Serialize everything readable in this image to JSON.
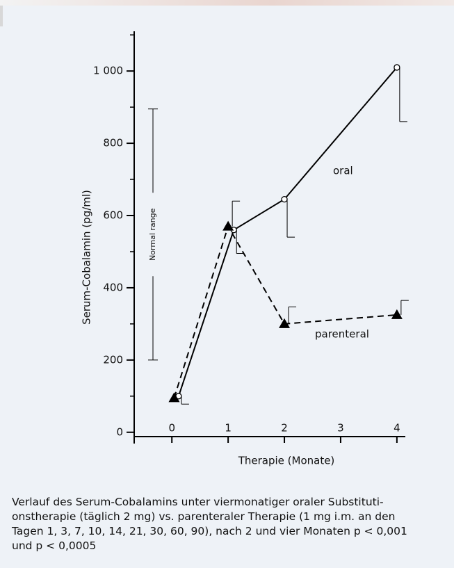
{
  "chart_data": {
    "type": "line",
    "ylabel": "Serum-Cobalamin (pg/ml)",
    "xlabel": "Therapie (Monate)",
    "xlim": [
      -0.67,
      4.15
    ],
    "xticks": [
      0,
      1,
      2,
      3,
      4
    ],
    "ylim": [
      -12,
      1110
    ],
    "yticks": [
      0,
      200,
      400,
      600,
      800,
      {
        "value": 1000,
        "label": "1 000"
      }
    ],
    "yminorticks": [
      100,
      300,
      500,
      700,
      900,
      1100
    ],
    "series": [
      {
        "name": "oral",
        "color": "#000000",
        "line_style": "solid",
        "marker": "circle",
        "x": [
          0.12,
          1.1,
          2,
          4
        ],
        "values": [
          100,
          560,
          645,
          1010
        ],
        "errors": [
          22,
          65,
          105,
          150
        ],
        "error_direction": "down"
      },
      {
        "name": "parenteral",
        "color": "#000000",
        "line_style": "dashed",
        "marker": "triangle",
        "x": [
          0.04,
          1,
          2,
          4
        ],
        "values": [
          95,
          570,
          300,
          325
        ],
        "errors": [
          null,
          70,
          47,
          40
        ],
        "error_direction": "up"
      }
    ],
    "normal_range": {
      "label": "Normal range",
      "low": 200,
      "high": 895
    },
    "caption_lines": [
      "Verlauf des Serum-Cobalamins unter viermonatiger oraler Substituti-",
      "onstherapie (täglich 2 mg) vs. parenteraler Therapie (1 mg i.m. an den",
      "Tagen 1, 3, 7, 10, 14, 21, 30, 60, 90), nach 2 und vier Monaten p < 0,001",
      "und p < 0,0005"
    ]
  }
}
